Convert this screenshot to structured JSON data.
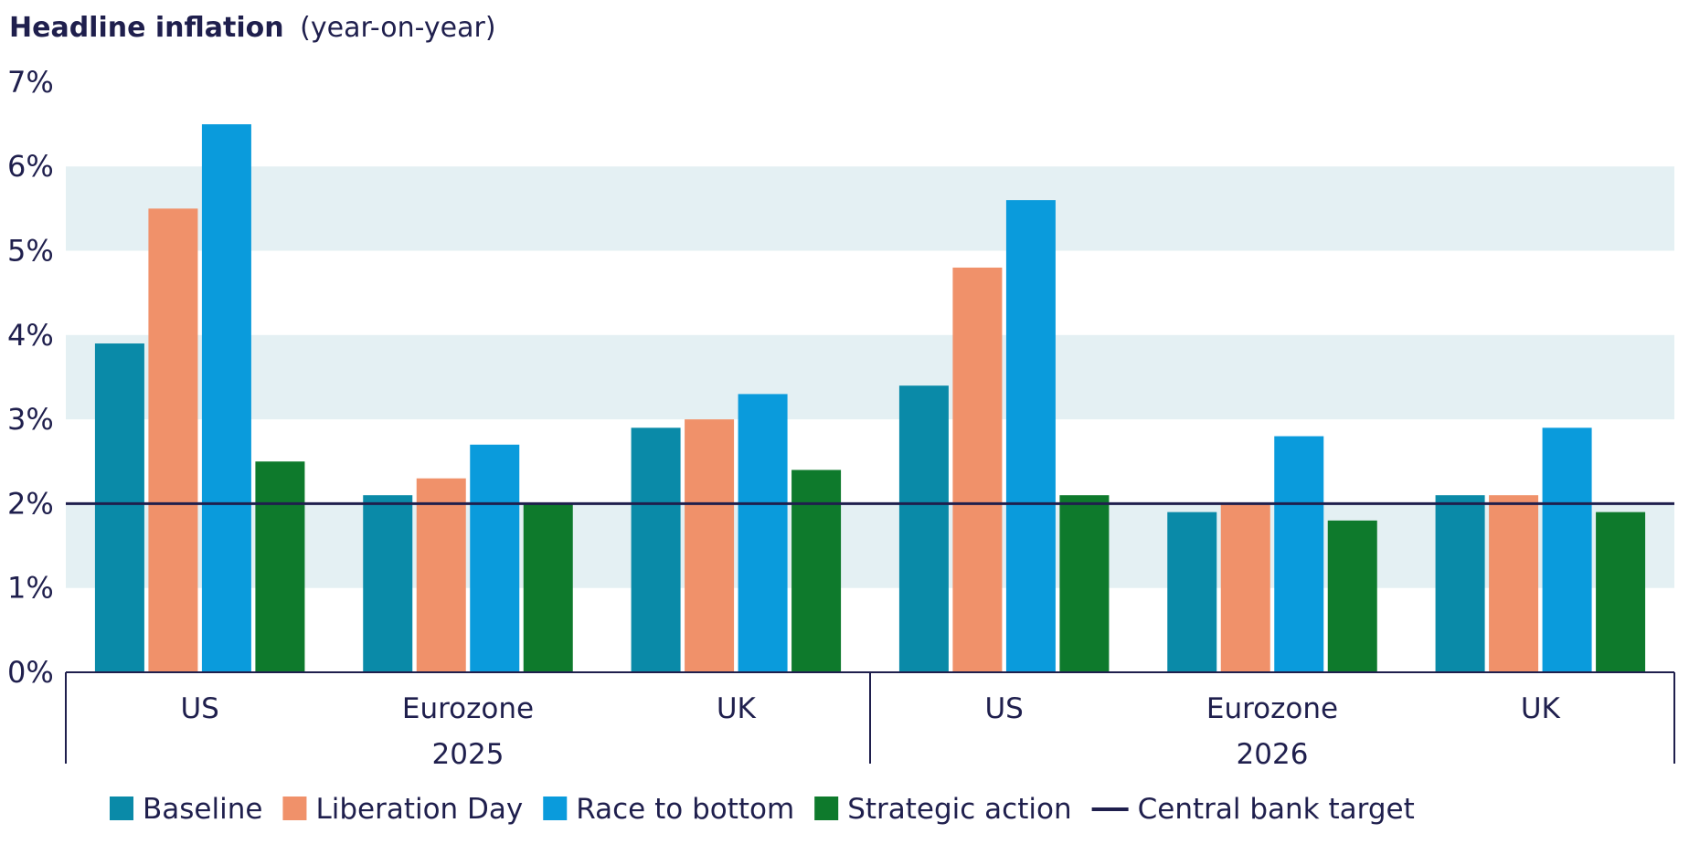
{
  "chart_data": {
    "type": "bar",
    "title": "Headline inflation",
    "subtitle": "(year-on-year)",
    "groups": [
      {
        "label": "2025",
        "categories": [
          "US",
          "Eurozone",
          "UK"
        ]
      },
      {
        "label": "2026",
        "categories": [
          "US",
          "Eurozone",
          "UK"
        ]
      }
    ],
    "categories": [
      "US",
      "Eurozone",
      "UK",
      "US",
      "Eurozone",
      "UK"
    ],
    "series": [
      {
        "name": "Baseline",
        "color": "#0a8aa8",
        "values": [
          3.9,
          2.1,
          2.9,
          3.4,
          1.9,
          2.1
        ]
      },
      {
        "name": "Liberation Day",
        "color": "#f0916a",
        "values": [
          5.5,
          2.3,
          3.0,
          4.8,
          2.0,
          2.1
        ]
      },
      {
        "name": "Race to bottom",
        "color": "#0a9bdc",
        "values": [
          6.5,
          2.7,
          3.3,
          5.6,
          2.8,
          2.9
        ]
      },
      {
        "name": "Strategic action",
        "color": "#0e7a2c",
        "values": [
          2.5,
          2.0,
          2.4,
          2.1,
          1.8,
          1.9
        ]
      }
    ],
    "reference_line": {
      "name": "Central bank target",
      "value": 2,
      "color": "#1f1f4d"
    },
    "yticks": [
      "0%",
      "1%",
      "2%",
      "3%",
      "4%",
      "5%",
      "6%",
      "7%"
    ],
    "ylim": [
      0,
      7
    ],
    "grid": "alternating bands",
    "band_color": "#e4f0f3",
    "legend_position": "bottom"
  }
}
